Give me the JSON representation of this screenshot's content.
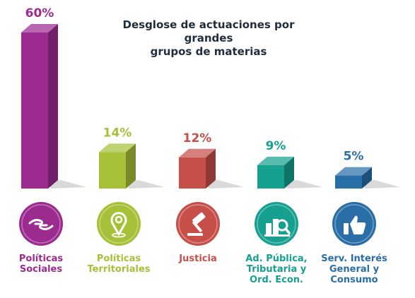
{
  "title": "Desglose de actuaciones por grandes\ngrupos de materias",
  "chart_data": {
    "type": "bar",
    "title": "Desglose de actuaciones por grandes\ngrupos de materias",
    "categories": [
      "Políticas\nSociales",
      "Políticas\nTerritoriales",
      "Justicia",
      "Ad. Pública,\nTributaria y\nOrd. Econ.",
      "Serv. Interés\nGeneral y\nConsumo"
    ],
    "values": [
      60,
      14,
      12,
      9,
      5
    ],
    "value_labels": [
      "60%",
      "14%",
      "12%",
      "9%",
      "5%"
    ],
    "colors": [
      "#9c2b90",
      "#a6c138",
      "#c64f4a",
      "#16a090",
      "#2a6ea7"
    ],
    "icons": [
      "helping-hands-icon",
      "location-pin-icon",
      "gavel-icon",
      "buildings-magnifier-icon",
      "thumbs-up-icon"
    ],
    "ylim": [
      0,
      60
    ],
    "grid": false,
    "legend": "none"
  }
}
